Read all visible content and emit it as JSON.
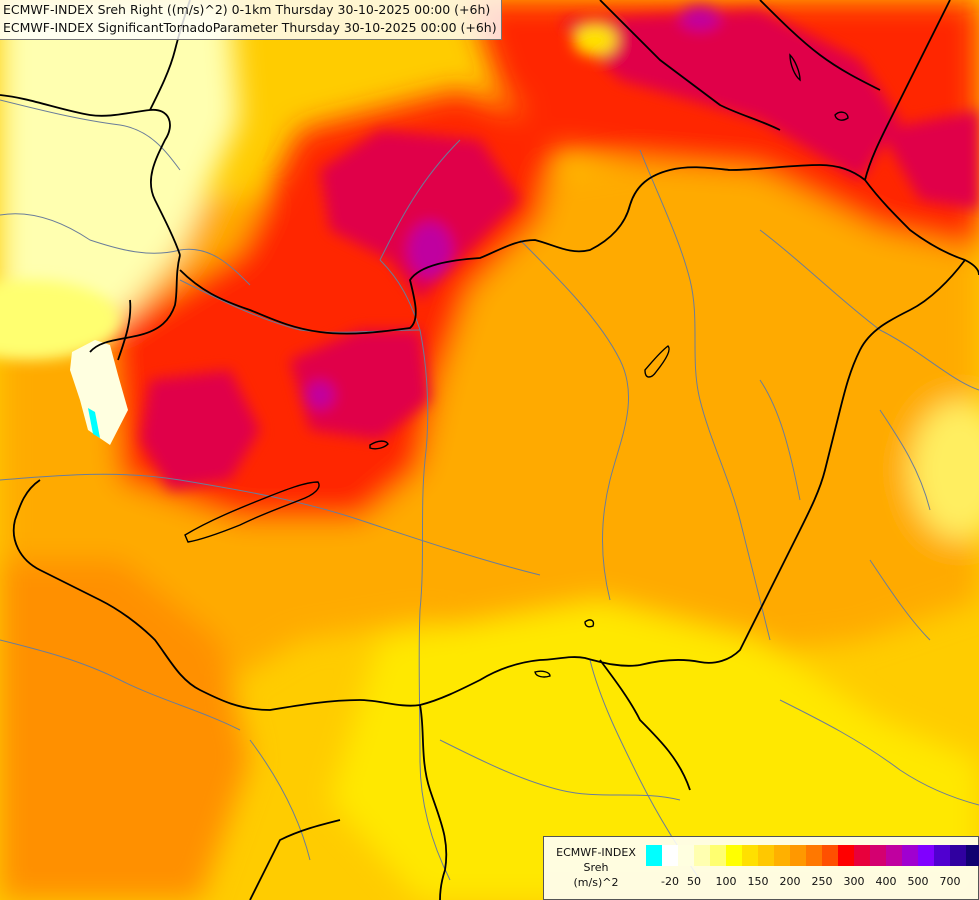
{
  "title": {
    "line1": "ECMWF-INDEX Sreh Right ((m/s)^2) 0-1km Thursday 30-10-2025 00:00 (+6h)",
    "line2": "ECMWF-INDEX SignificantTornadoParameter Thursday 30-10-2025 00:00 (+6h)"
  },
  "legend": {
    "source": "ECMWF-INDEX",
    "param": "Sreh",
    "unit": "(m/s)^2",
    "colors": [
      "#00ffff",
      "#ffffff",
      "#ffffe0",
      "#ffffb0",
      "#ffff70",
      "#ffff00",
      "#ffe000",
      "#ffc800",
      "#ffb000",
      "#ff9800",
      "#ff7800",
      "#ff5000",
      "#ff0000",
      "#e8003c",
      "#d40070",
      "#c000a0",
      "#a000d0",
      "#8000ff",
      "#5000d0",
      "#3000a0",
      "#100070"
    ],
    "ticks": [
      "-20",
      "50",
      "100",
      "150",
      "200",
      "250",
      "300",
      "400",
      "500",
      "700"
    ]
  }
}
